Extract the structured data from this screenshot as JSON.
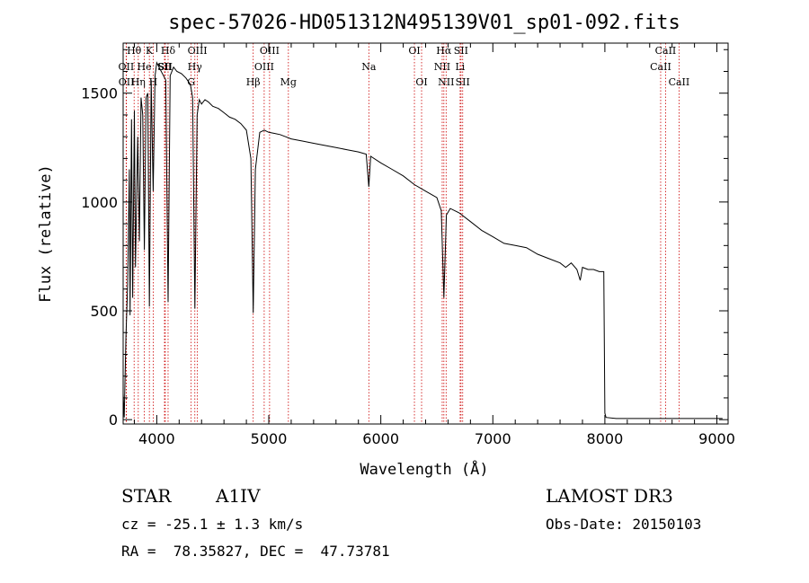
{
  "chart_data": {
    "type": "line",
    "title": "spec-57026-HD051312N495139V01_sp01-092.fits",
    "xlabel": "Wavelength (Å)",
    "ylabel": "Flux (relative)",
    "xlim": [
      3700,
      9100
    ],
    "ylim": [
      -20,
      1730
    ],
    "x_ticks": [
      4000,
      5000,
      6000,
      7000,
      8000,
      9000
    ],
    "y_ticks": [
      0,
      500,
      1000,
      1500
    ],
    "series": [
      {
        "name": "flux",
        "points": [
          [
            3700,
            120
          ],
          [
            3710,
            10
          ],
          [
            3725,
            380
          ],
          [
            3740,
            620
          ],
          [
            3755,
            1150
          ],
          [
            3762,
            480
          ],
          [
            3775,
            1380
          ],
          [
            3785,
            560
          ],
          [
            3800,
            1420
          ],
          [
            3810,
            700
          ],
          [
            3830,
            1300
          ],
          [
            3845,
            820
          ],
          [
            3860,
            1480
          ],
          [
            3875,
            1400
          ],
          [
            3889,
            780
          ],
          [
            3905,
            1480
          ],
          [
            3920,
            1500
          ],
          [
            3934,
            520
          ],
          [
            3950,
            1560
          ],
          [
            3968,
            1050
          ],
          [
            3985,
            1580
          ],
          [
            4000,
            1640
          ],
          [
            4020,
            1620
          ],
          [
            4040,
            1600
          ],
          [
            4060,
            1580
          ],
          [
            4080,
            1560
          ],
          [
            4101,
            540
          ],
          [
            4120,
            1580
          ],
          [
            4150,
            1620
          ],
          [
            4180,
            1600
          ],
          [
            4220,
            1590
          ],
          [
            4260,
            1570
          ],
          [
            4300,
            1540
          ],
          [
            4320,
            1480
          ],
          [
            4340,
            510
          ],
          [
            4360,
            1400
          ],
          [
            4380,
            1470
          ],
          [
            4400,
            1450
          ],
          [
            4430,
            1470
          ],
          [
            4460,
            1460
          ],
          [
            4500,
            1440
          ],
          [
            4550,
            1430
          ],
          [
            4600,
            1410
          ],
          [
            4650,
            1390
          ],
          [
            4700,
            1380
          ],
          [
            4750,
            1360
          ],
          [
            4800,
            1330
          ],
          [
            4840,
            1200
          ],
          [
            4861,
            490
          ],
          [
            4880,
            1150
          ],
          [
            4920,
            1320
          ],
          [
            4960,
            1330
          ],
          [
            5000,
            1320
          ],
          [
            5050,
            1315
          ],
          [
            5100,
            1310
          ],
          [
            5150,
            1300
          ],
          [
            5200,
            1290
          ],
          [
            5300,
            1280
          ],
          [
            5400,
            1270
          ],
          [
            5500,
            1260
          ],
          [
            5600,
            1250
          ],
          [
            5700,
            1240
          ],
          [
            5800,
            1230
          ],
          [
            5870,
            1220
          ],
          [
            5893,
            1070
          ],
          [
            5910,
            1210
          ],
          [
            6000,
            1180
          ],
          [
            6100,
            1150
          ],
          [
            6200,
            1120
          ],
          [
            6300,
            1080
          ],
          [
            6400,
            1050
          ],
          [
            6500,
            1020
          ],
          [
            6540,
            960
          ],
          [
            6563,
            560
          ],
          [
            6585,
            940
          ],
          [
            6620,
            970
          ],
          [
            6700,
            950
          ],
          [
            6800,
            910
          ],
          [
            6900,
            870
          ],
          [
            7000,
            840
          ],
          [
            7100,
            810
          ],
          [
            7200,
            800
          ],
          [
            7300,
            790
          ],
          [
            7400,
            760
          ],
          [
            7500,
            740
          ],
          [
            7600,
            720
          ],
          [
            7650,
            700
          ],
          [
            7700,
            720
          ],
          [
            7750,
            690
          ],
          [
            7780,
            640
          ],
          [
            7800,
            700
          ],
          [
            7850,
            690
          ],
          [
            7900,
            690
          ],
          [
            7950,
            680
          ],
          [
            7990,
            680
          ],
          [
            8000,
            30
          ],
          [
            8010,
            10
          ],
          [
            8100,
            5
          ],
          [
            8200,
            5
          ],
          [
            8300,
            5
          ],
          [
            8400,
            5
          ],
          [
            8500,
            5
          ],
          [
            8600,
            5
          ],
          [
            8700,
            5
          ],
          [
            8800,
            5
          ],
          [
            8900,
            5
          ],
          [
            9000,
            5
          ],
          [
            9050,
            5
          ]
        ]
      }
    ],
    "lines": [
      {
        "label": "Hθ",
        "wavelength": 3798,
        "row": 0
      },
      {
        "label": "OII",
        "wavelength": 3727,
        "row": 1
      },
      {
        "label": "OII",
        "wavelength": 3729,
        "row": 2
      },
      {
        "label": "He",
        "wavelength": 3889,
        "row": 1
      },
      {
        "label": "Hη",
        "wavelength": 3835,
        "row": 2
      },
      {
        "label": "K",
        "wavelength": 3934,
        "row": 0
      },
      {
        "label": "H",
        "wavelength": 3968,
        "row": 2
      },
      {
        "label": "Hδ",
        "wavelength": 4101,
        "row": 0
      },
      {
        "label": "SII",
        "wavelength": 4069,
        "row": 1
      },
      {
        "label": "SII",
        "wavelength": 4076,
        "row": 1
      },
      {
        "label": "OIII",
        "wavelength": 4363,
        "row": 0
      },
      {
        "label": "Hγ",
        "wavelength": 4340,
        "row": 1
      },
      {
        "label": "G",
        "wavelength": 4307,
        "row": 2
      },
      {
        "label": "Hβ",
        "wavelength": 4861,
        "row": 2
      },
      {
        "label": "OIII",
        "wavelength": 5007,
        "row": 0
      },
      {
        "label": "OIII",
        "wavelength": 4959,
        "row": 1
      },
      {
        "label": "Mg",
        "wavelength": 5175,
        "row": 2
      },
      {
        "label": "Na",
        "wavelength": 5893,
        "row": 1
      },
      {
        "label": "OI",
        "wavelength": 6300,
        "row": 0
      },
      {
        "label": "OI",
        "wavelength": 6364,
        "row": 2
      },
      {
        "label": "Hα",
        "wavelength": 6563,
        "row": 0
      },
      {
        "label": "NII",
        "wavelength": 6548,
        "row": 1
      },
      {
        "label": "NII",
        "wavelength": 6583,
        "row": 2
      },
      {
        "label": "SII",
        "wavelength": 6716,
        "row": 0
      },
      {
        "label": "SII",
        "wavelength": 6731,
        "row": 2
      },
      {
        "label": "Li",
        "wavelength": 6708,
        "row": 1
      },
      {
        "label": "CaII",
        "wavelength": 8542,
        "row": 0
      },
      {
        "label": "CaII",
        "wavelength": 8498,
        "row": 1
      },
      {
        "label": "CaII",
        "wavelength": 8662,
        "row": 2
      }
    ],
    "colors": {
      "line": "#000000",
      "marker": "#cc0000"
    }
  },
  "info": {
    "object_type": "STAR",
    "spectral_class": "A1IV",
    "survey": "LAMOST DR3",
    "cz": "cz = -25.1 ± 1.3 km/s",
    "obs_date": "Obs-Date: 20150103",
    "coords": "RA =  78.35827, DEC =  47.73781"
  }
}
